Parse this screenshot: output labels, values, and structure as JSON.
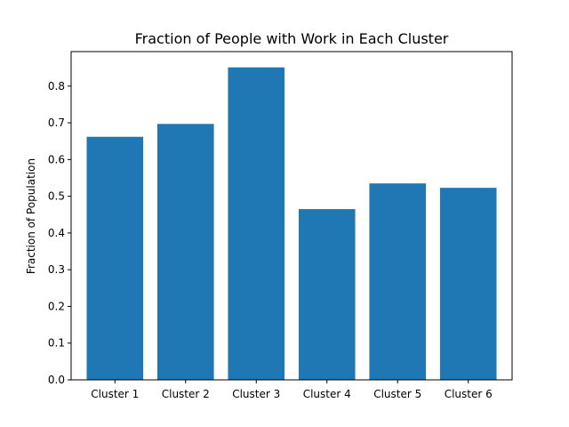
{
  "chart_data": {
    "type": "bar",
    "title": "Fraction of People with Work in Each Cluster",
    "xlabel": "",
    "ylabel": "Fraction of Population",
    "categories": [
      "Cluster 1",
      "Cluster 2",
      "Cluster 3",
      "Cluster 4",
      "Cluster 5",
      "Cluster 6"
    ],
    "values": [
      0.662,
      0.697,
      0.851,
      0.465,
      0.535,
      0.523
    ],
    "ylim": [
      0,
      0.894
    ],
    "yticks": [
      0.0,
      0.1,
      0.2,
      0.3,
      0.4,
      0.5,
      0.6,
      0.7,
      0.8
    ],
    "ytick_labels": [
      "0.0",
      "0.1",
      "0.2",
      "0.3",
      "0.4",
      "0.5",
      "0.6",
      "0.7",
      "0.8"
    ],
    "bar_color": "#1f77b4",
    "grid": false,
    "legend": "none"
  }
}
